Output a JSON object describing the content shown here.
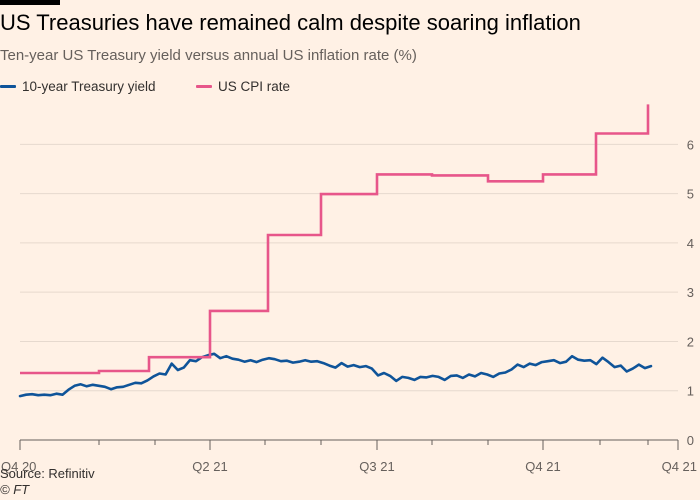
{
  "title": "US Treasuries have remained calm despite soaring inflation",
  "subtitle": "Ten-year US Treasury yield versus annual US inflation rate (%)",
  "source": "Source: Refinitiv",
  "copyright": "© FT",
  "colors": {
    "yield": "#0f5499",
    "cpi": "#e7568a",
    "background": "#fff1e5"
  },
  "chart_data": {
    "type": "line",
    "x_tick_labels": [
      "Q4 20",
      "Q2 21",
      "Q3 21",
      "Q4 21",
      "Q4 21"
    ],
    "ylim": [
      0,
      6.9
    ],
    "y_ticks": [
      0,
      1,
      2,
      3,
      4,
      5,
      6
    ],
    "y_axis_side": "right",
    "grid": true,
    "legend_placement": "top-left",
    "series": [
      {
        "name": "10-year Treasury yield",
        "key": "yield",
        "values": [
          0.89,
          0.92,
          0.93,
          0.91,
          0.92,
          0.91,
          0.94,
          0.92,
          1.02,
          1.1,
          1.13,
          1.09,
          1.12,
          1.1,
          1.08,
          1.03,
          1.07,
          1.08,
          1.12,
          1.16,
          1.15,
          1.21,
          1.29,
          1.35,
          1.33,
          1.55,
          1.42,
          1.47,
          1.62,
          1.6,
          1.68,
          1.72,
          1.75,
          1.66,
          1.7,
          1.65,
          1.63,
          1.59,
          1.62,
          1.58,
          1.63,
          1.66,
          1.64,
          1.6,
          1.61,
          1.57,
          1.59,
          1.62,
          1.59,
          1.6,
          1.56,
          1.51,
          1.47,
          1.56,
          1.49,
          1.52,
          1.48,
          1.5,
          1.45,
          1.31,
          1.36,
          1.3,
          1.2,
          1.28,
          1.26,
          1.22,
          1.28,
          1.27,
          1.3,
          1.28,
          1.22,
          1.3,
          1.31,
          1.26,
          1.33,
          1.29,
          1.36,
          1.33,
          1.28,
          1.35,
          1.37,
          1.43,
          1.53,
          1.48,
          1.55,
          1.52,
          1.58,
          1.6,
          1.62,
          1.56,
          1.59,
          1.7,
          1.63,
          1.61,
          1.62,
          1.54,
          1.67,
          1.58,
          1.48,
          1.51,
          1.39,
          1.45,
          1.53,
          1.46,
          1.5
        ]
      },
      {
        "name": "US CPI rate",
        "key": "cpi",
        "steps": [
          1.36,
          1.36,
          1.4,
          1.68,
          2.62,
          4.16,
          4.99,
          5.39,
          5.37,
          5.25,
          5.39,
          6.22,
          6.81
        ]
      }
    ]
  }
}
